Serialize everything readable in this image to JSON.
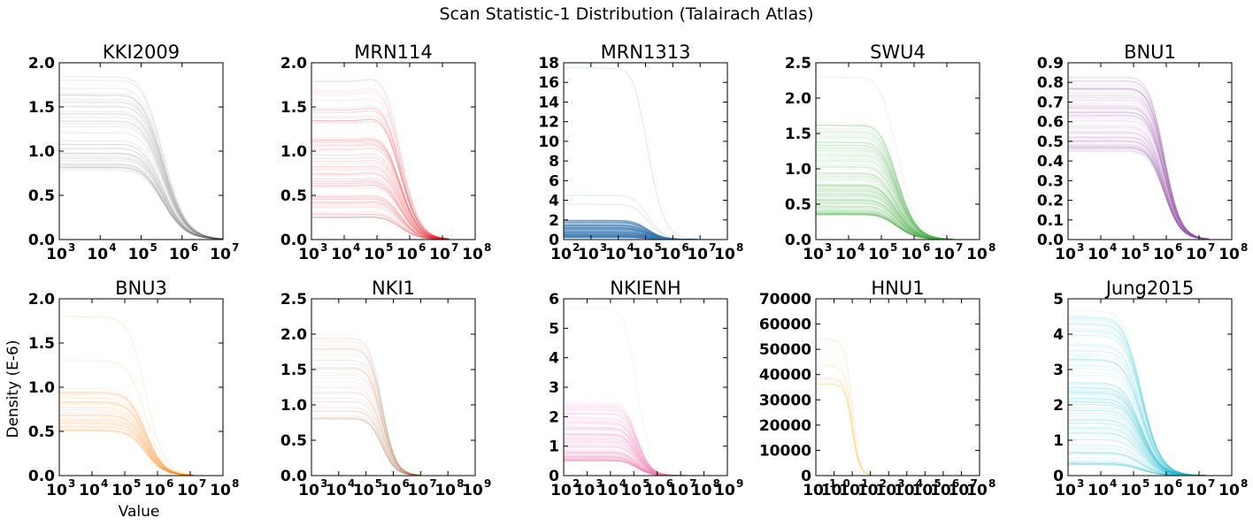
{
  "figure": {
    "title": "Scan Statistic-1 Distribution (Talairach Atlas)",
    "ylabel": "Density (E-6)",
    "xlabel": "Value"
  },
  "chart_data": [
    {
      "type": "line",
      "title": "KKI2009",
      "color": "#555555",
      "xscale": "log",
      "xlim": [
        3,
        7
      ],
      "ylim": [
        0,
        2.0
      ],
      "xticks": [
        3,
        4,
        5,
        6,
        7
      ],
      "yticks": [
        "0.0",
        "0.5",
        "1.0",
        "1.5",
        "2.0"
      ],
      "plateau_min": 0.75,
      "plateau_max": 1.85,
      "hump": 0.05,
      "drop_center": 5.55,
      "drop_width": 0.28,
      "curves": 40,
      "alpha": 0.13,
      "cut": 7.0
    },
    {
      "type": "line",
      "title": "MRN114",
      "color": "#e41a1c",
      "xscale": "log",
      "xlim": [
        3,
        8
      ],
      "ylim": [
        0,
        2.0
      ],
      "xticks": [
        3,
        4,
        5,
        6,
        7,
        8
      ],
      "yticks": [
        "0.0",
        "0.5",
        "1.0",
        "1.5",
        "2.0"
      ],
      "plateau_min": 0.25,
      "plateau_max": 1.8,
      "hump": 0.08,
      "drop_center": 5.75,
      "drop_width": 0.28,
      "curves": 90,
      "alpha": 0.09,
      "cut": 7.2
    },
    {
      "type": "line",
      "title": "MRN1313",
      "color": "#377eb8",
      "xscale": "log",
      "xlim": [
        2,
        8
      ],
      "ylim": [
        0,
        18
      ],
      "xticks": [
        2,
        3,
        4,
        5,
        6,
        7,
        8
      ],
      "yticks": [
        "0",
        "2",
        "4",
        "6",
        "8",
        "10",
        "12",
        "14",
        "16",
        "18"
      ],
      "plateau_min": 0.2,
      "plateau_max": 2.0,
      "hump": 0.05,
      "drop_center": 5.1,
      "drop_width": 0.3,
      "curves": 220,
      "alpha": 0.12,
      "cut": 7.6,
      "outliers": [
        17.5,
        4.5,
        3.6
      ]
    },
    {
      "type": "line",
      "title": "SWU4",
      "color": "#4daf4a",
      "xscale": "log",
      "xlim": [
        3,
        8
      ],
      "ylim": [
        0,
        2.5
      ],
      "xticks": [
        3,
        4,
        5,
        6,
        7,
        8
      ],
      "yticks": [
        "0.0",
        "0.5",
        "1.0",
        "1.5",
        "2.0",
        "2.5"
      ],
      "plateau_min": 0.35,
      "plateau_max": 1.7,
      "hump": 0.06,
      "drop_center": 5.5,
      "drop_width": 0.3,
      "curves": 180,
      "alpha": 0.09,
      "cut": 7.2,
      "outliers": [
        2.3
      ]
    },
    {
      "type": "line",
      "title": "BNU1",
      "color": "#984ea3",
      "xscale": "log",
      "xlim": [
        3,
        8
      ],
      "ylim": [
        0,
        0.9
      ],
      "xticks": [
        3,
        4,
        5,
        6,
        7,
        8
      ],
      "yticks": [
        "0.0",
        "0.1",
        "0.2",
        "0.3",
        "0.4",
        "0.5",
        "0.6",
        "0.7",
        "0.8",
        "0.9"
      ],
      "plateau_min": 0.45,
      "plateau_max": 0.83,
      "hump": 0.03,
      "drop_center": 5.95,
      "drop_width": 0.25,
      "curves": 90,
      "alpha": 0.1,
      "cut": 7.3
    },
    {
      "type": "line",
      "title": "BNU3",
      "color": "#ff7f00",
      "xscale": "log",
      "xlim": [
        3,
        8
      ],
      "ylim": [
        0,
        2.0
      ],
      "xticks": [
        3,
        4,
        5,
        6,
        7,
        8
      ],
      "yticks": [
        "0.0",
        "0.5",
        "1.0",
        "1.5",
        "2.0"
      ],
      "plateau_min": 0.5,
      "plateau_max": 1.0,
      "hump": 0.03,
      "drop_center": 5.65,
      "drop_width": 0.28,
      "curves": 45,
      "alpha": 0.1,
      "cut": 7.1,
      "outliers": [
        1.8,
        1.3
      ]
    },
    {
      "type": "line",
      "title": "NKI1",
      "color": "#a65628",
      "xscale": "log",
      "xlim": [
        3,
        9
      ],
      "ylim": [
        0,
        2.5
      ],
      "xticks": [
        3,
        4,
        5,
        6,
        7,
        8,
        9
      ],
      "yticks": [
        "0.0",
        "0.5",
        "1.0",
        "1.5",
        "2.0",
        "2.5"
      ],
      "plateau_min": 0.8,
      "plateau_max": 2.0,
      "hump": 0.03,
      "drop_center": 5.6,
      "drop_width": 0.25,
      "curves": 40,
      "alpha": 0.09,
      "cut": 7.0
    },
    {
      "type": "line",
      "title": "NKIENH",
      "color": "#f781bf",
      "xscale": "log",
      "xlim": [
        2,
        9
      ],
      "ylim": [
        0,
        6
      ],
      "xticks": [
        2,
        3,
        4,
        5,
        6,
        7,
        8,
        9
      ],
      "yticks": [
        "0",
        "1",
        "2",
        "3",
        "4",
        "5",
        "6"
      ],
      "plateau_min": 0.5,
      "plateau_max": 2.6,
      "hump": 0.05,
      "drop_center": 5.15,
      "drop_width": 0.3,
      "curves": 180,
      "alpha": 0.07,
      "cut": 7.3,
      "outliers": [
        5.7
      ]
    },
    {
      "type": "line",
      "title": "HNU1",
      "color": "#ffcc66",
      "xscale": "log",
      "xlim": [
        -1,
        8
      ],
      "ylim": [
        0,
        70000
      ],
      "xticks": [
        -1,
        0,
        1,
        2,
        3,
        4,
        5,
        6,
        7,
        8
      ],
      "yticks": [
        "0",
        "10000",
        "20000",
        "30000",
        "40000",
        "50000",
        "60000",
        "70000"
      ],
      "plateau_min": 36000,
      "plateau_max": 58000,
      "hump": 0.0,
      "drop_center": 1.0,
      "drop_width": 0.2,
      "curves": 6,
      "alpha": 0.35,
      "cut": 2.0
    },
    {
      "type": "line",
      "title": "Jung2015",
      "color": "#17becf",
      "xscale": "log",
      "xlim": [
        3,
        8
      ],
      "ylim": [
        0,
        5
      ],
      "xticks": [
        3,
        4,
        5,
        6,
        7,
        8
      ],
      "yticks": [
        "0",
        "1",
        "2",
        "3",
        "4",
        "5"
      ],
      "plateau_min": 0.3,
      "plateau_max": 4.7,
      "hump": 0.04,
      "drop_center": 5.25,
      "drop_width": 0.3,
      "curves": 120,
      "alpha": 0.1,
      "cut": 7.2
    }
  ]
}
